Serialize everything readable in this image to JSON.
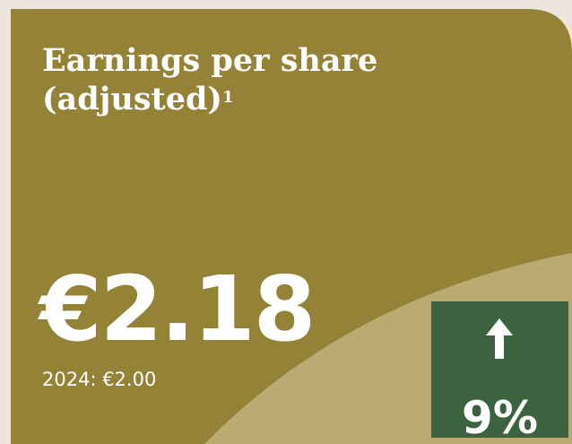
{
  "card": {
    "title": "Earnings per share (adjusted)",
    "footnote": "1",
    "value": "€2.18",
    "prior": "2024: €2.00",
    "change": "9%"
  }
}
